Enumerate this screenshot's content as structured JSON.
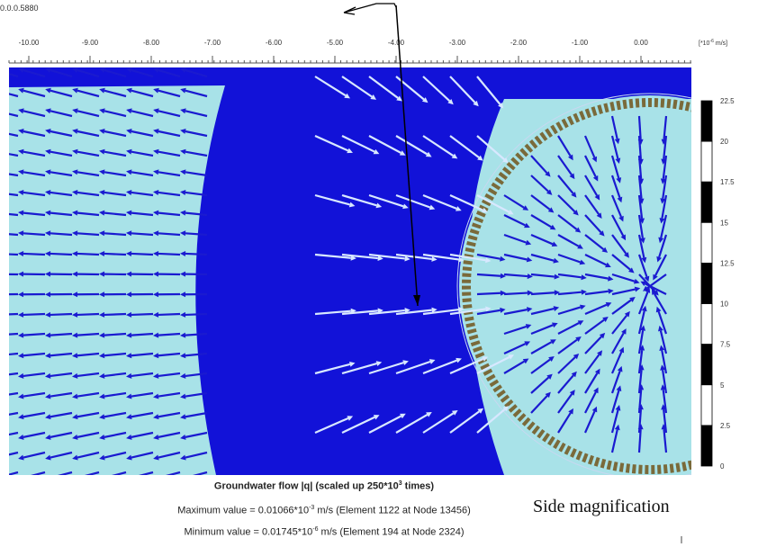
{
  "header": {
    "coordinate": "0.0.0.5880"
  },
  "ruler": {
    "labels": [
      "-10.00",
      "-9.00",
      "-8.00",
      "-7.00",
      "-6.00",
      "-5.00",
      "-4.00",
      "-3.00",
      "-2.00",
      "-1.00",
      "0.00"
    ],
    "unit": {
      "prefix": "[*10",
      "exponent": "-6",
      "suffix": " m/s]"
    }
  },
  "legend_scale": {
    "labels": [
      "22.5",
      "20",
      "17.5",
      "15",
      "12.5",
      "10",
      "7.5",
      "5",
      "2.5",
      "0"
    ]
  },
  "caption": {
    "title": {
      "prefix": "Groundwater flow |q| (scaled up 250*10",
      "exponent": "3",
      "suffix": " times)"
    },
    "maximum": {
      "prefix": "Maximum value = 0.01066*10",
      "exponent": "-3",
      "suffix": " m/s (Element 1122 at Node 13456)"
    },
    "minimum": {
      "prefix": "Minimum value = 0.01745*10",
      "exponent": "-6",
      "suffix": " m/s (Element 194 at Node 2324)"
    }
  },
  "annotation": "Side magnification"
}
